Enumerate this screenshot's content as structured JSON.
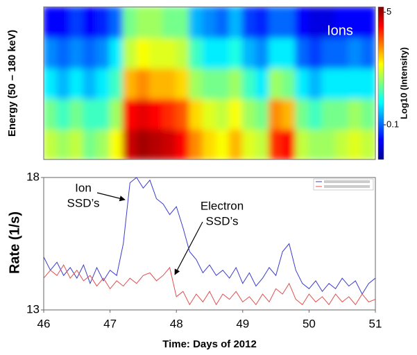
{
  "chart_data": [
    {
      "type": "heatmap",
      "ylabel": "Energy (50 – 180 keV)",
      "colorbar_label": "Log10 (Intensity)",
      "colorbar_lim": [
        0.03,
        6
      ],
      "colorbar_ticks": [
        5,
        0.1
      ],
      "log_color": true,
      "annotation": "Ions",
      "x_edges": [
        46,
        46.2,
        46.4,
        46.6,
        46.8,
        47,
        47.2,
        47.4,
        47.6,
        47.8,
        48,
        48.2,
        48.4,
        48.6,
        48.8,
        49,
        49.2,
        49.4,
        49.6,
        49.8,
        50,
        50.2,
        50.4,
        50.6,
        50.8,
        51
      ],
      "z": [
        [
          0.6,
          0.5,
          0.6,
          0.4,
          0.5,
          0.8,
          4,
          5,
          4.5,
          4,
          3,
          1.5,
          1,
          0.8,
          1.2,
          0.7,
          0.6,
          2.5,
          3,
          0.6,
          0.5,
          0.5,
          0.6,
          0.7,
          0.6
        ],
        [
          0.4,
          0.3,
          0.4,
          0.3,
          0.3,
          0.5,
          3,
          3.5,
          3,
          2.5,
          2,
          1,
          0.7,
          0.6,
          0.8,
          0.5,
          0.4,
          1.5,
          1.2,
          0.4,
          0.3,
          0.4,
          0.4,
          0.5,
          0.4
        ],
        [
          0.2,
          0.15,
          0.2,
          0.15,
          0.2,
          0.3,
          1.2,
          1.5,
          1.2,
          1.2,
          1,
          0.5,
          0.4,
          0.4,
          0.5,
          0.3,
          0.2,
          0.5,
          0.4,
          0.2,
          0.15,
          0.2,
          0.2,
          0.2,
          0.2
        ],
        [
          0.12,
          0.1,
          0.12,
          0.1,
          0.12,
          0.2,
          0.6,
          0.8,
          0.7,
          0.7,
          0.6,
          0.3,
          0.2,
          0.2,
          0.25,
          0.15,
          0.12,
          0.2,
          0.2,
          0.1,
          0.08,
          0.1,
          0.1,
          0.12,
          0.1
        ],
        [
          0.06,
          0.06,
          0.08,
          0.06,
          0.07,
          0.1,
          0.4,
          0.5,
          0.5,
          0.4,
          0.4,
          0.15,
          0.12,
          0.1,
          0.15,
          0.08,
          0.07,
          0.1,
          0.1,
          0.06,
          0.05,
          0.05,
          0.06,
          0.06,
          0.06
        ]
      ]
    },
    {
      "type": "line",
      "ylabel": "Rate (1/s)",
      "xlabel": "Time: Days of 2012",
      "xlim": [
        46,
        51
      ],
      "xticks": [
        46,
        47,
        48,
        49,
        50,
        51
      ],
      "ylim": [
        13,
        18
      ],
      "yticks": [
        13,
        18
      ],
      "annotations": [
        {
          "lines": [
            "Ion",
            "SSD’s"
          ]
        },
        {
          "lines": [
            "Electron",
            "SSD’s"
          ]
        }
      ],
      "x": [
        46,
        46.1,
        46.2,
        46.3,
        46.4,
        46.5,
        46.6,
        46.7,
        46.8,
        46.9,
        47,
        47.1,
        47.2,
        47.3,
        47.4,
        47.5,
        47.6,
        47.7,
        47.8,
        47.9,
        48,
        48.1,
        48.2,
        48.3,
        48.4,
        48.5,
        48.6,
        48.7,
        48.8,
        48.9,
        49,
        49.1,
        49.2,
        49.3,
        49.4,
        49.5,
        49.6,
        49.7,
        49.8,
        49.9,
        50,
        50.1,
        50.2,
        50.3,
        50.4,
        50.5,
        50.6,
        50.7,
        50.8,
        50.9,
        51
      ],
      "series": [
        {
          "color": "#3b3bd0",
          "values": [
            15.0,
            14.5,
            14.8,
            14.3,
            14.6,
            14.2,
            14.7,
            14.0,
            14.6,
            14.1,
            14.5,
            14.3,
            15.5,
            17.8,
            18.0,
            17.6,
            17.9,
            17.2,
            17.0,
            16.6,
            16.9,
            16.1,
            15.2,
            14.9,
            14.4,
            14.7,
            14.3,
            14.5,
            14.2,
            14.6,
            14.0,
            14.4,
            13.9,
            14.2,
            14.6,
            14.3,
            15.2,
            15.5,
            14.5,
            14.0,
            13.8,
            14.1,
            13.7,
            14.0,
            13.8,
            14.2,
            13.9,
            14.1,
            13.6,
            14.0,
            14.2
          ]
        },
        {
          "color": "#e05050",
          "values": [
            14.2,
            14.5,
            14.3,
            14.7,
            14.2,
            14.5,
            14.1,
            14.3,
            13.9,
            14.2,
            13.8,
            14.1,
            13.9,
            14.2,
            14.0,
            14.3,
            14.4,
            14.1,
            14.3,
            14.6,
            13.5,
            13.7,
            13.2,
            13.6,
            13.3,
            13.7,
            13.2,
            13.6,
            13.4,
            13.7,
            13.3,
            13.5,
            13.2,
            13.6,
            13.3,
            13.8,
            13.6,
            14.0,
            13.4,
            13.2,
            13.6,
            13.3,
            13.5,
            13.2,
            13.6,
            13.3,
            13.5,
            13.2,
            13.6,
            13.3,
            13.4
          ]
        }
      ]
    }
  ]
}
